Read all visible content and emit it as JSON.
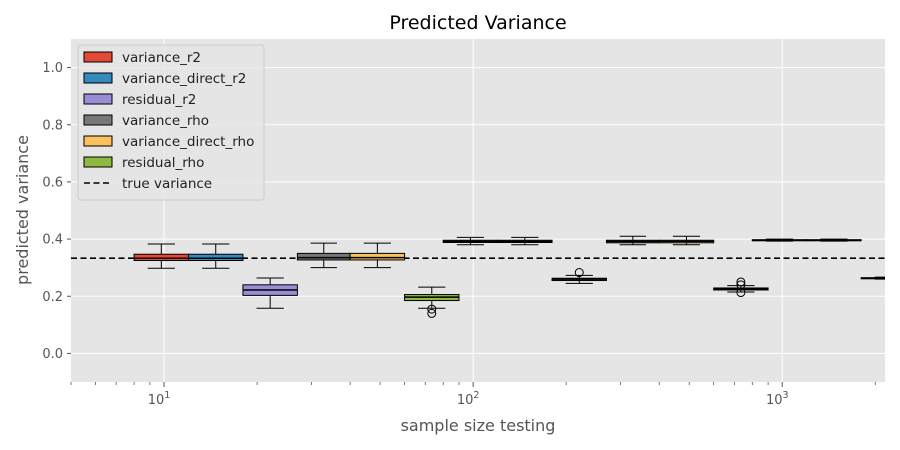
{
  "chart_data": {
    "type": "box",
    "title": "Predicted Variance",
    "xlabel": "sample size testing",
    "ylabel": "predicted variance",
    "xscale": "log",
    "xlim": [
      5,
      2150
    ],
    "ylim": [
      -0.1,
      1.1
    ],
    "yticks": [
      "0.0",
      "0.2",
      "0.4",
      "0.6",
      "0.8",
      "1.0"
    ],
    "xticks": [
      {
        "value": 10,
        "base": "10",
        "exp": "1"
      },
      {
        "value": 100,
        "base": "10",
        "exp": "2"
      },
      {
        "value": 1000,
        "base": "10",
        "exp": "3"
      }
    ],
    "grid": true,
    "legend_position": "upper left",
    "reference_line": {
      "name": "true variance",
      "y": 0.333,
      "color": "#000000",
      "style": "dashed"
    },
    "series": [
      {
        "name": "variance_r2",
        "color": "#E24A33",
        "boxes": [
          {
            "x_from": 8,
            "x_to": 12,
            "whislo": 0.298,
            "q1": 0.325,
            "med": 0.333,
            "q3": 0.347,
            "whishi": 0.383,
            "fliers": []
          },
          {
            "x_from": 80,
            "x_to": 120,
            "whislo": 0.38,
            "q1": 0.388,
            "med": 0.392,
            "q3": 0.396,
            "whishi": 0.406,
            "fliers": []
          },
          {
            "x_from": 800,
            "x_to": 1200,
            "whislo": 0.393,
            "q1": 0.394,
            "med": 0.396,
            "q3": 0.398,
            "whishi": 0.4,
            "fliers": []
          }
        ]
      },
      {
        "name": "variance_direct_r2",
        "color": "#348ABD",
        "boxes": [
          {
            "x_from": 12,
            "x_to": 18,
            "whislo": 0.298,
            "q1": 0.325,
            "med": 0.333,
            "q3": 0.347,
            "whishi": 0.383,
            "fliers": []
          },
          {
            "x_from": 120,
            "x_to": 180,
            "whislo": 0.38,
            "q1": 0.388,
            "med": 0.392,
            "q3": 0.396,
            "whishi": 0.406,
            "fliers": []
          },
          {
            "x_from": 1200,
            "x_to": 1800,
            "whislo": 0.393,
            "q1": 0.394,
            "med": 0.396,
            "q3": 0.398,
            "whishi": 0.4,
            "fliers": []
          }
        ]
      },
      {
        "name": "residual_r2",
        "color": "#988ED5",
        "boxes": [
          {
            "x_from": 18,
            "x_to": 27,
            "whislo": 0.158,
            "q1": 0.203,
            "med": 0.222,
            "q3": 0.24,
            "whishi": 0.264,
            "fliers": []
          },
          {
            "x_from": 180,
            "x_to": 270,
            "whislo": 0.245,
            "q1": 0.255,
            "med": 0.26,
            "q3": 0.263,
            "whishi": 0.273,
            "fliers": [
              0.283
            ]
          },
          {
            "x_from": 1800,
            "x_to": 2700,
            "whislo": 0.26,
            "q1": 0.261,
            "med": 0.263,
            "q3": 0.265,
            "whishi": 0.267,
            "fliers": []
          }
        ]
      },
      {
        "name": "variance_rho",
        "color": "#777777",
        "boxes": [
          {
            "x_from": 27,
            "x_to": 40,
            "whislo": 0.3,
            "q1": 0.327,
            "med": 0.335,
            "q3": 0.35,
            "whishi": 0.386,
            "fliers": []
          },
          {
            "x_from": 270,
            "x_to": 400,
            "whislo": 0.38,
            "q1": 0.387,
            "med": 0.392,
            "q3": 0.396,
            "whishi": 0.41,
            "fliers": []
          }
        ]
      },
      {
        "name": "variance_direct_rho",
        "color": "#FBC15E",
        "boxes": [
          {
            "x_from": 40,
            "x_to": 60,
            "whislo": 0.3,
            "q1": 0.327,
            "med": 0.335,
            "q3": 0.35,
            "whishi": 0.386,
            "fliers": []
          },
          {
            "x_from": 400,
            "x_to": 600,
            "whislo": 0.38,
            "q1": 0.387,
            "med": 0.392,
            "q3": 0.396,
            "whishi": 0.41,
            "fliers": []
          }
        ]
      },
      {
        "name": "residual_rho",
        "color": "#8EBA42",
        "boxes": [
          {
            "x_from": 60,
            "x_to": 90,
            "whislo": 0.158,
            "q1": 0.185,
            "med": 0.197,
            "q3": 0.206,
            "whishi": 0.232,
            "fliers": [
              0.155,
              0.14
            ]
          },
          {
            "x_from": 600,
            "x_to": 900,
            "whislo": 0.215,
            "q1": 0.222,
            "med": 0.226,
            "q3": 0.229,
            "whishi": 0.237,
            "fliers": [
              0.25,
              0.24,
              0.213
            ]
          }
        ]
      }
    ]
  }
}
